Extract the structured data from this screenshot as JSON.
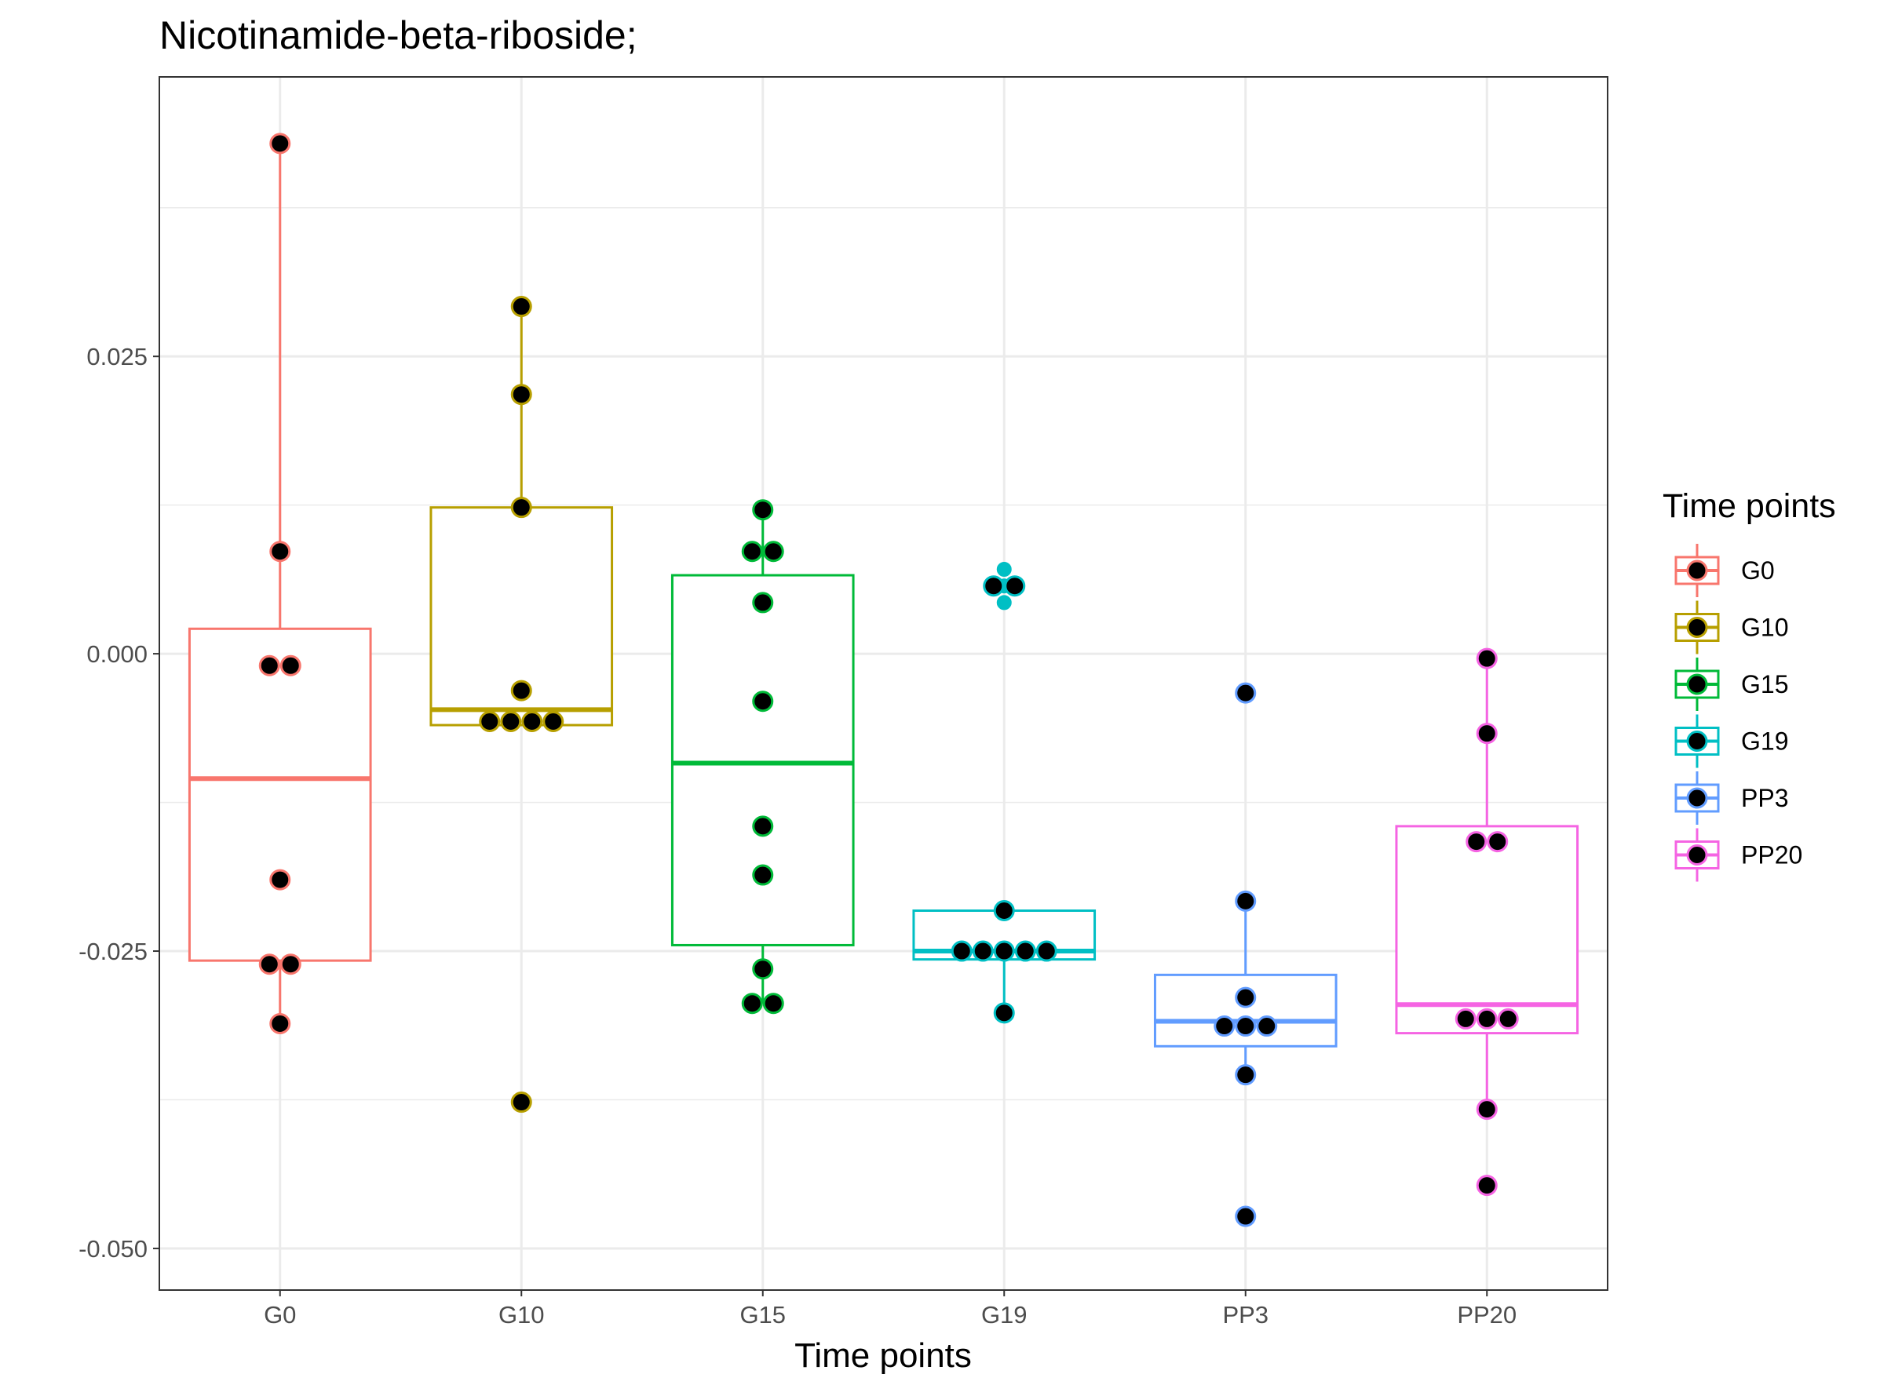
{
  "chart_data": {
    "type": "box",
    "title": "Nicotinamide-beta-riboside;",
    "xlabel": "Time points",
    "ylabel": "",
    "ylim": [
      -0.0535,
      0.0485
    ],
    "yticks": [
      0.025,
      0.0,
      -0.025,
      -0.05
    ],
    "ytick_labels": [
      "0.025",
      "0.000",
      "-0.025",
      "-0.050"
    ],
    "grid": true,
    "categories": [
      "G0",
      "G10",
      "G15",
      "G19",
      "PP3",
      "PP20"
    ],
    "legend": {
      "title": "Time points",
      "position": "right",
      "items": [
        "G0",
        "G10",
        "G15",
        "G19",
        "PP3",
        "PP20"
      ]
    },
    "series": [
      {
        "name": "G0",
        "color": "#F8766D",
        "box": {
          "q1": -0.0258,
          "median": -0.0105,
          "q3": 0.0021,
          "whisker_low": -0.0311,
          "whisker_high": 0.0429
        },
        "points": [
          0.0429,
          0.0086,
          -0.001,
          -0.001,
          -0.019,
          -0.0261,
          -0.0261,
          -0.0311
        ]
      },
      {
        "name": "G10",
        "color": "#B79F00",
        "box": {
          "q1": -0.006,
          "median": -0.0047,
          "q3": 0.0123,
          "whisker_low": -0.006,
          "whisker_high": 0.0292
        },
        "points": [
          0.0292,
          0.0218,
          0.0123,
          -0.0031,
          -0.0057,
          -0.0057,
          -0.0057,
          -0.0057,
          -0.0377
        ]
      },
      {
        "name": "G15",
        "color": "#00BA38",
        "box": {
          "q1": -0.0245,
          "median": -0.0092,
          "q3": 0.0066,
          "whisker_low": -0.0294,
          "whisker_high": 0.0121
        },
        "points": [
          0.0121,
          0.0086,
          0.0086,
          0.0043,
          -0.004,
          -0.0145,
          -0.0186,
          -0.0265,
          -0.0294,
          -0.0294
        ]
      },
      {
        "name": "G19",
        "color": "#00BFC4",
        "box": {
          "q1": -0.0257,
          "median": -0.025,
          "q3": -0.0216,
          "whisker_low": -0.0302,
          "whisker_high": -0.0216
        },
        "points": [
          0.0057,
          0.0057,
          -0.0216,
          -0.025,
          -0.025,
          -0.025,
          -0.025,
          -0.025,
          -0.0302
        ],
        "outliers": [
          0.0071,
          0.0057,
          0.0043
        ]
      },
      {
        "name": "PP3",
        "color": "#619CFF",
        "box": {
          "q1": -0.033,
          "median": -0.0309,
          "q3": -0.027,
          "whisker_low": -0.0354,
          "whisker_high": -0.0208
        },
        "points": [
          -0.0033,
          -0.0208,
          -0.0289,
          -0.0313,
          -0.0313,
          -0.0313,
          -0.0354,
          -0.0473
        ]
      },
      {
        "name": "PP20",
        "color": "#F564E3",
        "box": {
          "q1": -0.0319,
          "median": -0.0295,
          "q3": -0.0145,
          "whisker_low": -0.0383,
          "whisker_high": -0.0004
        },
        "points": [
          -0.0004,
          -0.0067,
          -0.0158,
          -0.0158,
          -0.0307,
          -0.0307,
          -0.0307,
          -0.0383,
          -0.0447
        ]
      }
    ]
  }
}
